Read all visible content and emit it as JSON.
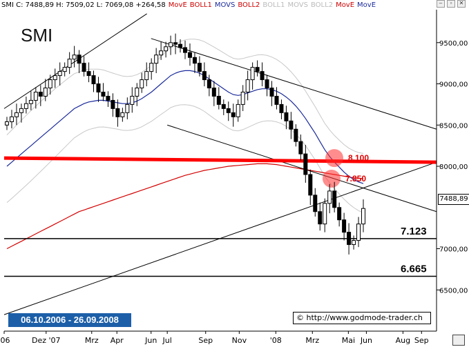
{
  "header": {
    "legend": [
      {
        "text": "SMI C: 7488,89 H: 7509,02 L: 7069,08 +264,58",
        "color": "#000000"
      },
      {
        "text": "MovE",
        "color": "#cc0000"
      },
      {
        "text": "BOLL1",
        "color": "#cc0000"
      },
      {
        "text": "MOVS",
        "color": "#1a2a9a"
      },
      {
        "text": "BOLL2",
        "color": "#cc0000"
      },
      {
        "text": "BOLL1",
        "color": "#bbbbbb"
      },
      {
        "text": "MOVS",
        "color": "#bbbbbb"
      },
      {
        "text": "BOLL2",
        "color": "#bbbbbb"
      },
      {
        "text": "MovE",
        "color": "#cc0000"
      },
      {
        "text": "MovE",
        "color": "#1a2a9a"
      }
    ]
  },
  "window_controls": [
    "–",
    "▫",
    "✕"
  ],
  "chart_data": {
    "type": "candlestick",
    "title": "SMI",
    "date_range": "06.10.2006 - 26.09.2008",
    "source": "© http://www.godmode-trader.ch",
    "last_price_label": "7488,89",
    "y_ticks": [
      "9500,00",
      "9000,00",
      "8500,00",
      "8000,00",
      "7000,00",
      "6500,00"
    ],
    "ylim": [
      6000,
      9900
    ],
    "x_ticks": [
      "'06",
      "Dez '07",
      "Mrz",
      "Apr",
      "Jun",
      "Jul",
      "Sep",
      "Nov",
      "'08",
      "Mrz",
      "Mai",
      "Jun",
      "Aug",
      "Sep"
    ],
    "x_tick_dates": [
      "2006-10-06",
      "2006-12-15",
      "2007-03-01",
      "2007-04-12",
      "2007-06-08",
      "2007-07-05",
      "2007-09-07",
      "2007-11-02",
      "2008-01-02",
      "2008-03-03",
      "2008-05-02",
      "2008-06-01",
      "2008-08-01",
      "2008-09-01"
    ],
    "horizontal_levels": [
      {
        "label": "8.100",
        "value": 8100,
        "color": "#ff0000"
      },
      {
        "label": "7.850",
        "value": 7850,
        "color": "#ff0000"
      },
      {
        "label": "7.123",
        "value": 7123,
        "color": "#000000"
      },
      {
        "label": "6.665",
        "value": 6665,
        "color": "#000000"
      }
    ],
    "series": [
      {
        "name": "Close",
        "values": [
          8540,
          8600,
          8650,
          8700,
          8760,
          8800,
          8900,
          8850,
          8950,
          9050,
          9100,
          9150,
          9200,
          9300,
          9350,
          9250,
          9150,
          9100,
          9000,
          8900,
          8850,
          8800,
          8700,
          8600,
          8650,
          8750,
          8850,
          8950,
          9050,
          9150,
          9250,
          9350,
          9400,
          9450,
          9500,
          9480,
          9440,
          9380,
          9320,
          9250,
          9150,
          9050,
          8950,
          8850,
          8750,
          8700,
          8650,
          8600,
          8750,
          8900,
          9050,
          9200,
          9150,
          9050,
          8950,
          8850,
          8750,
          8650,
          8550,
          8450,
          8300,
          8150,
          7900,
          7650,
          7450,
          7300,
          7550,
          7700,
          7500,
          7350,
          7200,
          7050,
          7100,
          7300,
          7488
        ]
      },
      {
        "name": "MovE",
        "values": [
          7000,
          7030,
          7060,
          7090,
          7120,
          7150,
          7180,
          7210,
          7240,
          7270,
          7300,
          7330,
          7360,
          7390,
          7420,
          7450,
          7470,
          7490,
          7510,
          7530,
          7550,
          7570,
          7590,
          7610,
          7630,
          7650,
          7670,
          7690,
          7710,
          7730,
          7750,
          7770,
          7790,
          7810,
          7830,
          7850,
          7870,
          7890,
          7905,
          7920,
          7935,
          7950,
          7960,
          7970,
          7980,
          7990,
          8000,
          8005,
          8010,
          8015,
          8020,
          8025,
          8030,
          8030,
          8030,
          8025,
          8020,
          8010,
          8000,
          7990,
          7980,
          7970,
          7960,
          7950,
          7940,
          7930,
          7920,
          7910,
          7900,
          7890,
          7880,
          7870,
          7860,
          7855,
          7850
        ]
      },
      {
        "name": "MOVS",
        "values": [
          8000,
          8050,
          8100,
          8150,
          8200,
          8250,
          8300,
          8350,
          8400,
          8450,
          8500,
          8550,
          8600,
          8650,
          8700,
          8730,
          8760,
          8780,
          8790,
          8800,
          8800,
          8790,
          8780,
          8770,
          8760,
          8760,
          8770,
          8790,
          8820,
          8860,
          8900,
          8950,
          9000,
          9050,
          9100,
          9130,
          9150,
          9160,
          9160,
          9150,
          9130,
          9100,
          9060,
          9020,
          8980,
          8940,
          8900,
          8870,
          8860,
          8870,
          8890,
          8910,
          8930,
          8940,
          8940,
          8930,
          8910,
          8880,
          8840,
          8790,
          8730,
          8660,
          8580,
          8490,
          8400,
          8300,
          8200,
          8120,
          8050,
          7990,
          7930,
          7880,
          7840,
          7810,
          7790
        ]
      }
    ],
    "trendlines": [
      {
        "from": [
          "2006-10-06",
          8700
        ],
        "to": [
          "2007-06-01",
          9850
        ]
      },
      {
        "from": [
          "2007-06-08",
          9550
        ],
        "to": [
          "2008-09-26",
          8450
        ]
      },
      {
        "from": [
          "2007-07-05",
          8500
        ],
        "to": [
          "2008-09-26",
          7450
        ]
      },
      {
        "from": [
          "2006-10-06",
          6200
        ],
        "to": [
          "2008-09-26",
          8050
        ]
      }
    ]
  }
}
